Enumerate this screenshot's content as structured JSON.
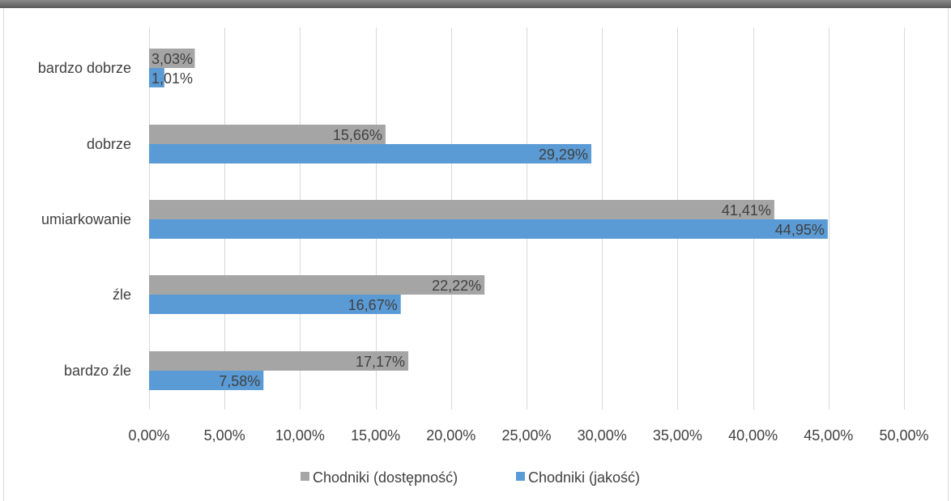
{
  "chart_data": {
    "type": "bar",
    "orientation": "horizontal",
    "categories": [
      "bardzo dobrze",
      "dobrze",
      "umiarkowanie",
      "źle",
      "bardzo źle"
    ],
    "series": [
      {
        "name": "Chodniki (dostępność)",
        "color": "#a5a5a5",
        "values": [
          3.03,
          15.66,
          41.41,
          22.22,
          17.17
        ],
        "labels": [
          "3,03%",
          "15,66%",
          "41,41%",
          "22,22%",
          "17,17%"
        ]
      },
      {
        "name": "Chodniki (jakość)",
        "color": "#5b9bd5",
        "values": [
          1.01,
          29.29,
          44.95,
          16.67,
          7.58
        ],
        "labels": [
          "1,01%",
          "29,29%",
          "44,95%",
          "16,67%",
          "7,58%"
        ]
      }
    ],
    "xlim": [
      0,
      50
    ],
    "x_ticks": [
      0,
      5,
      10,
      15,
      20,
      25,
      30,
      35,
      40,
      45,
      50
    ],
    "x_tick_labels": [
      "0,00%",
      "5,00%",
      "10,00%",
      "15,00%",
      "20,00%",
      "25,00%",
      "30,00%",
      "35,00%",
      "40,00%",
      "45,00%",
      "50,00%"
    ],
    "grid": true,
    "legend_position": "bottom",
    "title": "",
    "xlabel": "",
    "ylabel": ""
  }
}
